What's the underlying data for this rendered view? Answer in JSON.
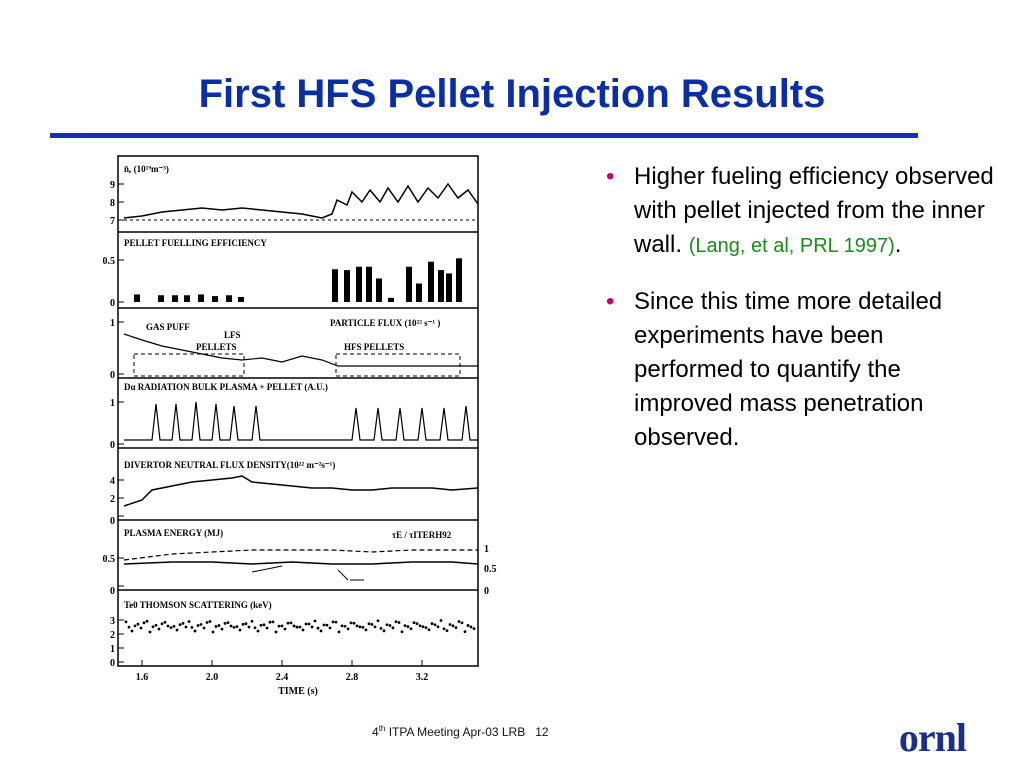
{
  "slide": {
    "title": "First HFS Pellet Injection Results"
  },
  "bullets": [
    {
      "text": "Higher fueling efficiency observed with pellet injected from the inner wall.",
      "citation": "Lang, et al, PRL 1997"
    },
    {
      "text": "Since this time more detailed experiments have been performed to quantify the improved mass penetration observed.",
      "citation": ""
    }
  ],
  "footer": {
    "ordinal": "4",
    "ordinal_suffix": "th",
    "meeting": "ITPA Meeting  Apr-03  LRB",
    "page": "12",
    "logo": "ornl"
  },
  "figure": {
    "x_axis_label": "TIME (s)",
    "x_ticks": [
      "1.6",
      "2.0",
      "2.4",
      "2.8",
      "3.2"
    ],
    "panels": [
      {
        "label": "n̄e (10¹⁹m⁻³)",
        "y_ticks": [
          "9",
          "8",
          "7"
        ]
      },
      {
        "label": "PELLET FUELLING EFFICIENCY",
        "y_ticks": [
          "0.5",
          "0"
        ]
      },
      {
        "label": "PARTICLE FLUX (10²² s⁻¹)",
        "extra": [
          "GAS PUFF",
          "LFS",
          "PELLETS",
          "HFS PELLETS"
        ],
        "y_ticks": [
          "1",
          "0"
        ]
      },
      {
        "label": "Dα RADIATION BULK PLASMA + PELLET (A.U.)",
        "y_ticks": [
          "1",
          "0"
        ]
      },
      {
        "label": "DIVERTOR NEUTRAL FLUX  DENSITY(10²² m⁻²s⁻¹)",
        "y_ticks": [
          "4",
          "2",
          "0"
        ]
      },
      {
        "label": "PLASMA ENERGY (MJ)",
        "right_label": "τE / τITERH92",
        "y_ticks": [
          "0.5",
          "0"
        ],
        "right_ticks": [
          "1",
          "0.5",
          "0"
        ]
      },
      {
        "label": "Te0  THOMSON SCATTERING (keV)",
        "y_ticks": [
          "3",
          "2",
          "1",
          "0"
        ]
      }
    ],
    "efficiency_bars": {
      "lfs": [
        0.09,
        0.08,
        0.08,
        0.08,
        0.09,
        0.07,
        0.08,
        0.06
      ],
      "hfs": [
        0.39,
        0.38,
        0.42,
        0.42,
        0.28,
        0.05,
        0.42,
        0.22,
        0.48,
        0.38,
        0.34,
        0.52
      ]
    }
  }
}
